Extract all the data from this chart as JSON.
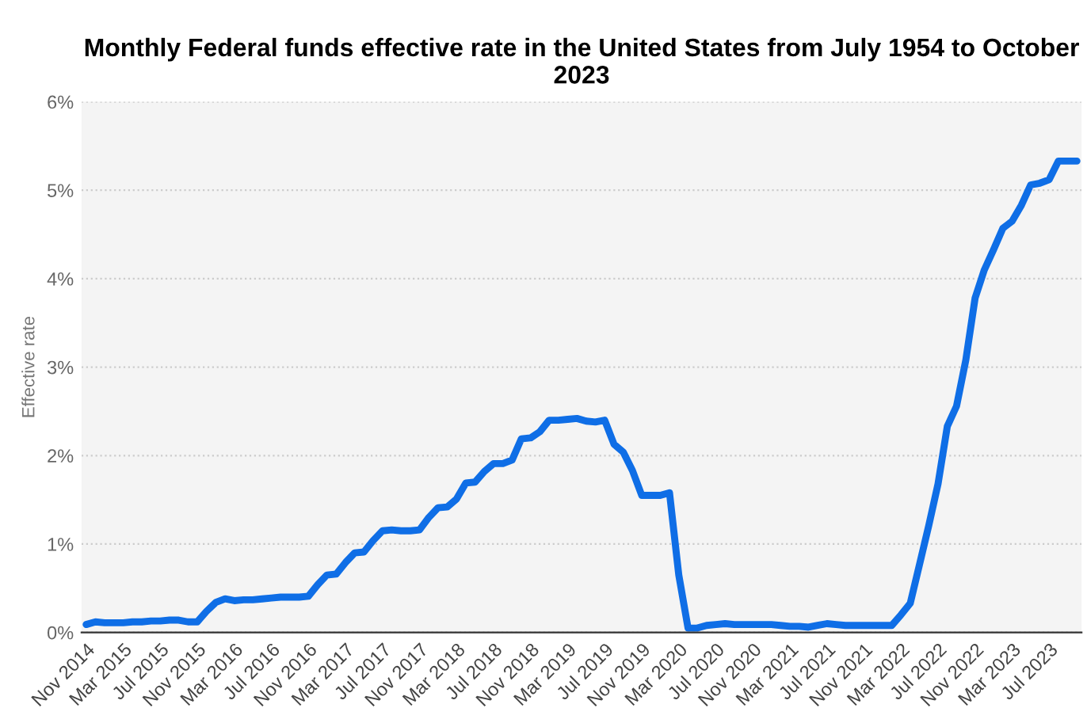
{
  "chart_data": {
    "type": "line",
    "title": "Monthly Federal funds effective rate in the United States from July 1954 to October 2023",
    "ylabel": "Effective rate",
    "categories": [
      "Nov 2014",
      null,
      null,
      null,
      "Mar 2015",
      null,
      null,
      null,
      "Jul 2015",
      null,
      null,
      null,
      "Nov 2015",
      null,
      null,
      null,
      "Mar 2016",
      null,
      null,
      null,
      "Jul 2016",
      null,
      null,
      null,
      "Nov 2016",
      null,
      null,
      null,
      "Mar 2017",
      null,
      null,
      null,
      "Jul 2017",
      null,
      null,
      null,
      "Nov 2017",
      null,
      null,
      null,
      "Mar 2018",
      null,
      null,
      null,
      "Jul 2018",
      null,
      null,
      null,
      "Nov 2018",
      null,
      null,
      null,
      "Mar 2019",
      null,
      null,
      null,
      "Jul 2019",
      null,
      null,
      null,
      "Nov 2019",
      null,
      null,
      null,
      "Mar 2020",
      null,
      null,
      null,
      "Jul 2020",
      null,
      null,
      null,
      "Nov 2020",
      null,
      null,
      null,
      "Mar 2021",
      null,
      null,
      null,
      "Jul 2021",
      null,
      null,
      null,
      "Nov 2021",
      null,
      null,
      null,
      "Mar 2022",
      null,
      null,
      null,
      "Jul 2022",
      null,
      null,
      null,
      "Nov 2022",
      null,
      null,
      null,
      "Mar 2023",
      null,
      null,
      null,
      "Jul 2023",
      null,
      null,
      null
    ],
    "series": [
      {
        "color": "#0f6ee6",
        "values": [
          0.09,
          0.12,
          0.11,
          0.11,
          0.11,
          0.12,
          0.12,
          0.13,
          0.13,
          0.14,
          0.14,
          0.12,
          0.12,
          0.24,
          0.34,
          0.38,
          0.36,
          0.37,
          0.37,
          0.38,
          0.39,
          0.4,
          0.4,
          0.4,
          0.41,
          0.54,
          0.65,
          0.66,
          0.79,
          0.9,
          0.91,
          1.04,
          1.15,
          1.16,
          1.15,
          1.15,
          1.16,
          1.3,
          1.41,
          1.42,
          1.51,
          1.69,
          1.7,
          1.82,
          1.91,
          1.91,
          1.95,
          2.19,
          2.2,
          2.27,
          2.4,
          2.4,
          2.41,
          2.42,
          2.39,
          2.38,
          2.4,
          2.13,
          2.04,
          1.83,
          1.55,
          1.55,
          1.55,
          1.58,
          0.65,
          0.05,
          0.05,
          0.08,
          0.09,
          0.1,
          0.09,
          0.09,
          0.09,
          0.09,
          0.09,
          0.08,
          0.07,
          0.07,
          0.06,
          0.08,
          0.1,
          0.09,
          0.08,
          0.08,
          0.08,
          0.08,
          0.08,
          0.08,
          0.2,
          0.33,
          0.77,
          1.21,
          1.68,
          2.33,
          2.56,
          3.08,
          3.78,
          4.1,
          4.33,
          4.57,
          4.65,
          4.83,
          5.06,
          5.08,
          5.12,
          5.33,
          5.33,
          5.33
        ]
      }
    ],
    "ylim": [
      0,
      6
    ],
    "yticks": [
      {
        "value": 0,
        "label": "0%"
      },
      {
        "value": 1,
        "label": "1%"
      },
      {
        "value": 2,
        "label": "2%"
      },
      {
        "value": 3,
        "label": "3%"
      },
      {
        "value": 4,
        "label": "4%"
      },
      {
        "value": 5,
        "label": "5%"
      },
      {
        "value": 6,
        "label": "6%"
      }
    ],
    "grid": "y",
    "legend": false,
    "marker": "none",
    "line_style": "solid"
  }
}
